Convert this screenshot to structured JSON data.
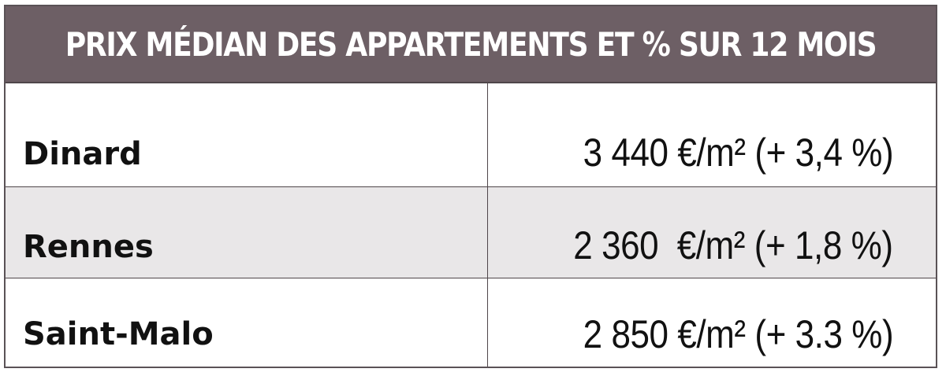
{
  "chart_data": {
    "type": "table",
    "title": "PRIX MÉDIAN DES APPARTEMENTS ET % SUR 12 MOIS",
    "rows": [
      {
        "city": "Dinard",
        "value_label": "3 440 €/m² (+ 3,4 %)",
        "price_eur_m2": 3440,
        "change_pct": 3.4
      },
      {
        "city": "Rennes",
        "value_label": "2 360  €/m² (+ 1,8 %)",
        "price_eur_m2": 2360,
        "change_pct": 1.8
      },
      {
        "city": "Saint-Malo",
        "value_label": "2 850 €/m² (+ 3.3 %)",
        "price_eur_m2": 2850,
        "change_pct": 3.3
      }
    ],
    "colors": {
      "header_bg": "#6d5f65",
      "header_text": "#ffffff",
      "stripe_bg": "#e9e7e8",
      "border": "#4f464a"
    }
  }
}
